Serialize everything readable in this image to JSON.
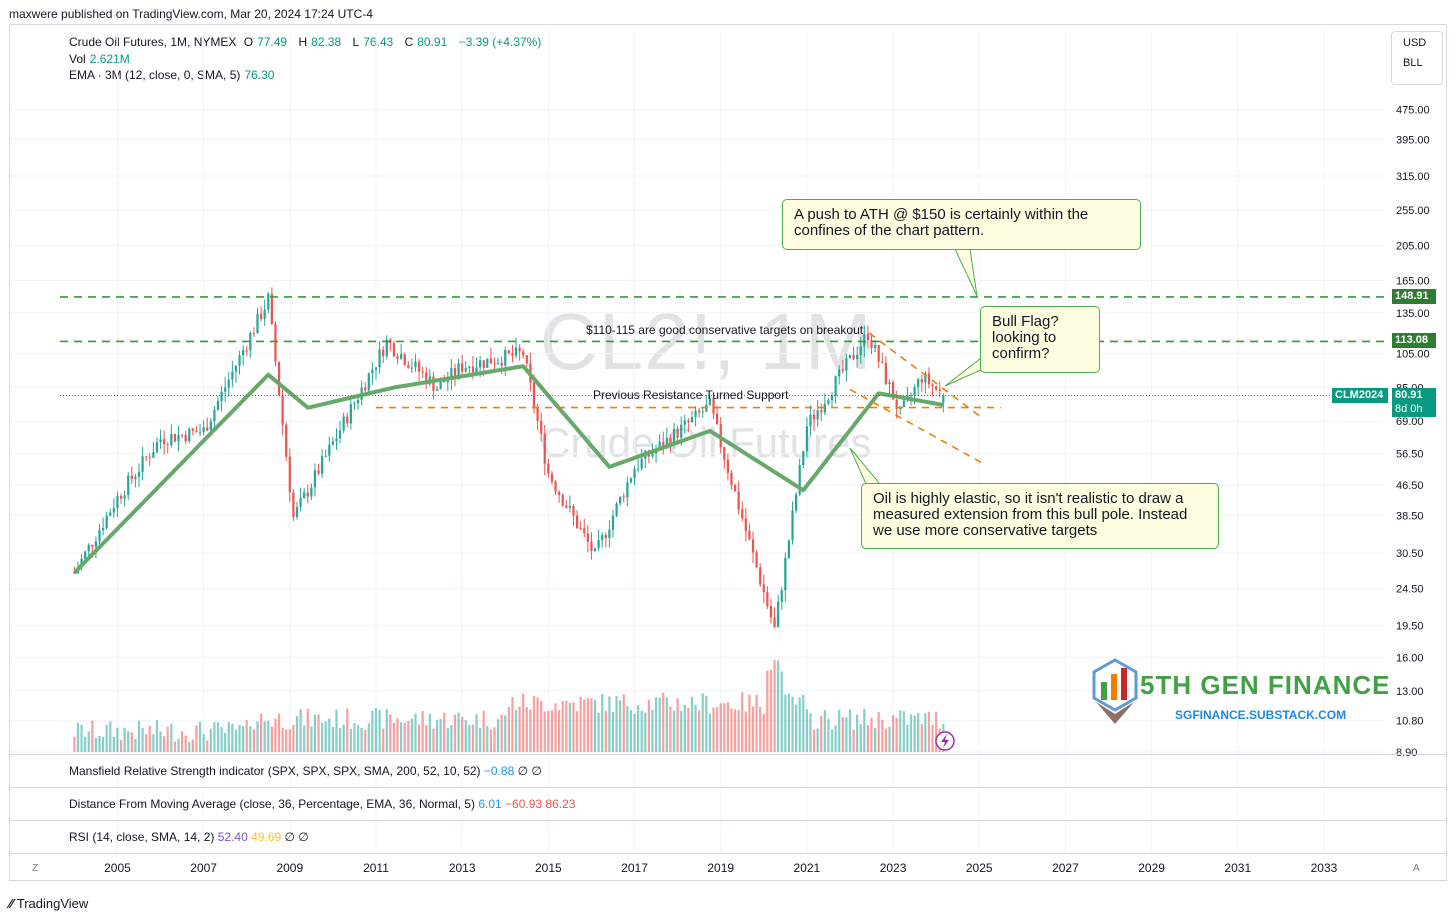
{
  "header": {
    "published": "maxwere published on TradingView.com, Mar 20, 2024 17:24 UTC-4"
  },
  "legend": {
    "symbol": "Crude Oil Futures, 1M, NYMEX",
    "o_label": "O",
    "o": "77.49",
    "h_label": "H",
    "h": "82.38",
    "l_label": "L",
    "l": "76.43",
    "c_label": "C",
    "c": "80.91",
    "change": "+3.39 (+4.37%)",
    "vol_label": "Vol",
    "vol": "2.621M",
    "ema_label": "EMA · 3M (12, close, 0, SMA, 5)",
    "ema": "76.30"
  },
  "currency": {
    "currency": "USD",
    "unit": "BLL"
  },
  "watermark": {
    "symbol": "CL2!, 1M",
    "name": "Crude Oil Futures"
  },
  "annotations": {
    "ath": "A push to ATH @ $150 is certainly within the confines of the chart pattern.",
    "bullflag": "Bull Flag? looking to confirm?",
    "elastic": "Oil is highly elastic, so it isn't realistic to draw a measured extension from this bull pole. Instead we use more conservative targets",
    "targets": "$110-115 are good conservative targets on breakout",
    "support": "Previous Resistance Turned Support"
  },
  "price_tags": {
    "high": "148.91",
    "mid": "113.08",
    "contract": "CLM2024",
    "last": "80.91",
    "countdown": "8d 0h"
  },
  "panes": {
    "mansfield": {
      "label": "Mansfield Relative Strength indicator (SPX, SPX, SPX, SMA, 200, 52, 10, 52)",
      "v1": "−0.88",
      "v2": "∅",
      "v3": "∅"
    },
    "distance": {
      "label": "Distance From Moving Average (close, 36, Percentage, EMA, 36, Normal, 5)",
      "v1": "6.01",
      "v2": "−60.93",
      "v3": "86.23"
    },
    "rsi": {
      "label": "RSI (14, close, SMA, 14, 2)",
      "v1": "52.40",
      "v2": "49.69",
      "v3": "∅",
      "v4": "∅"
    }
  },
  "logo": {
    "name": "5TH GEN FINANCE",
    "url": "SGFINANCE.SUBSTACK.COM"
  },
  "footer": {
    "brand": "TradingView",
    "z_left": "Z",
    "a_right": "A"
  },
  "colors": {
    "up": "#26a69a",
    "down": "#ef5350",
    "ema": "#66a96b",
    "guide_green": "#2ea02e",
    "guide_orange": "#f57c00",
    "tag_green": "#2e7d32",
    "contract_tag": "#089981"
  },
  "chart_data": {
    "type": "candlestick",
    "scale": "log",
    "title": "CL2!, 1M",
    "x_ticks": [
      "2005",
      "2007",
      "2009",
      "2011",
      "2013",
      "2015",
      "2017",
      "2019",
      "2021",
      "2023",
      "2025",
      "2027",
      "2029",
      "2031",
      "2033"
    ],
    "y_ticks": [
      "475.00",
      "395.00",
      "315.00",
      "255.00",
      "205.00",
      "165.00",
      "135.00",
      "105.00",
      "85.00",
      "69.00",
      "56.50",
      "46.50",
      "38.50",
      "30.50",
      "24.50",
      "19.50",
      "16.00",
      "13.00",
      "10.80",
      "8.90"
    ],
    "key_points": [
      {
        "x": "2004",
        "close": 27
      },
      {
        "x": "2005",
        "close": 43
      },
      {
        "x": "2006",
        "close": 62
      },
      {
        "x": "2007",
        "close": 65
      },
      {
        "x": "2008-07",
        "close": 147
      },
      {
        "x": "2009-02",
        "close": 38
      },
      {
        "x": "2011-04",
        "close": 113
      },
      {
        "x": "2012-06",
        "close": 85
      },
      {
        "x": "2013",
        "close": 97
      },
      {
        "x": "2014-06",
        "close": 105
      },
      {
        "x": "2015",
        "close": 50
      },
      {
        "x": "2016-02",
        "close": 30
      },
      {
        "x": "2017",
        "close": 52
      },
      {
        "x": "2018-10",
        "close": 76
      },
      {
        "x": "2019",
        "close": 60
      },
      {
        "x": "2020-04",
        "close": 19
      },
      {
        "x": "2021",
        "close": 67
      },
      {
        "x": "2022-06",
        "close": 119
      },
      {
        "x": "2023-03",
        "close": 72
      },
      {
        "x": "2023-09",
        "close": 91
      },
      {
        "x": "2024-03",
        "close": 80.91
      }
    ],
    "ema_key_points": [
      {
        "x": "2004",
        "value": 27
      },
      {
        "x": "2008-07",
        "value": 92
      },
      {
        "x": "2009-06",
        "value": 75
      },
      {
        "x": "2011-06",
        "value": 85
      },
      {
        "x": "2014-06",
        "value": 97
      },
      {
        "x": "2016-06",
        "value": 52
      },
      {
        "x": "2018-10",
        "value": 65
      },
      {
        "x": "2020-12",
        "value": 45
      },
      {
        "x": "2022-09",
        "value": 82
      },
      {
        "x": "2024-03",
        "value": 76.3
      }
    ],
    "horizontal_levels": [
      148.91,
      113.08
    ],
    "support_level": 76,
    "x_domain": [
      "2003-09",
      "2034-06"
    ],
    "y_domain": [
      8.9,
      520
    ]
  }
}
